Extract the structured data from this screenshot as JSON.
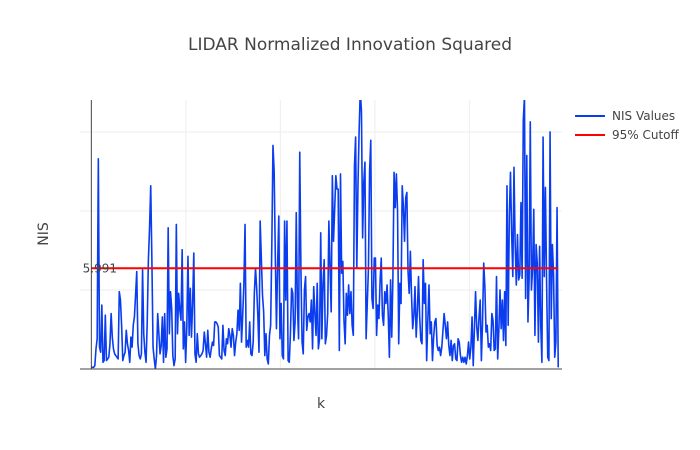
{
  "chart_data": {
    "type": "line",
    "title": "LIDAR Normalized Innovation Squared",
    "xlabel": "k",
    "ylabel": "NIS",
    "yticks": [
      {
        "value": 5.991,
        "label": "5.991"
      }
    ],
    "xlim": [
      -6,
      249
    ],
    "ylim": [
      0,
      16
    ],
    "grid": true,
    "legend_position": "top-right",
    "series": [
      {
        "name": "NIS Values",
        "color": "#0a3cf0",
        "values": [
          0.1,
          0.1,
          0.1,
          0.2,
          1.2,
          1.8,
          12.5,
          1.3,
          1.0,
          3.8,
          0.4,
          0.5,
          3.2,
          0.5,
          0.6,
          0.7,
          1.5,
          3.3,
          1.9,
          1.2,
          0.9,
          0.8,
          0.7,
          0.6,
          4.6,
          4.1,
          2.6,
          0.5,
          0.8,
          1.0,
          2.3,
          1.5,
          1.1,
          0.4,
          1.9,
          1.3,
          2.6,
          3.1,
          4.4,
          5.8,
          1.5,
          0.8,
          0.6,
          0.9,
          5.9,
          2.1,
          1.0,
          0.4,
          2.8,
          6.5,
          8.4,
          10.9,
          6.5,
          1.3,
          0.6,
          0.0,
          0.8,
          3.3,
          2.1,
          0.9,
          1.4,
          3.1,
          0.4,
          3.3,
          0.7,
          1.2,
          8.4,
          2.1,
          4.6,
          3.6,
          0.8,
          0.2,
          0.6,
          8.6,
          2.1,
          4.5,
          3.5,
          2.9,
          7.1,
          1.2,
          2.8,
          0.4,
          2.5,
          6.7,
          2.0,
          4.8,
          1.9,
          3.9,
          6.9,
          0.9,
          0.4,
          2.1,
          0.9,
          0.7,
          0.8,
          0.9,
          1.1,
          2.2,
          1.5,
          0.7,
          2.3,
          1.0,
          0.7,
          1.2,
          1.6,
          1.4,
          2.8,
          2.8,
          2.7,
          2.5,
          0.8,
          0.7,
          0.6,
          2.6,
          1.1,
          0.8,
          1.8,
          1.5,
          2.4,
          2.0,
          1.3,
          2.4,
          2.0,
          0.8,
          1.6,
          2.1,
          3.5,
          2.3,
          5.1,
          1.6,
          3.2,
          5.0,
          8.6,
          1.3,
          1.7,
          1.3,
          2.8,
          0.9,
          0.8,
          1.6,
          4.5,
          6.0,
          4.8,
          3.2,
          1.0,
          8.8,
          6.6,
          4.4,
          3.4,
          0.8,
          2.1,
          0.6,
          0.3,
          2.0,
          2.6,
          7.3,
          13.3,
          11.8,
          6.8,
          2.4,
          6.2,
          9.1,
          1.8,
          3.9,
          0.8,
          0.6,
          8.8,
          4.1,
          8.8,
          0.5,
          0.4,
          2.1,
          4.8,
          4.5,
          1.7,
          2.8,
          9.3,
          3.7,
          1.8,
          12.9,
          6.0,
          1.6,
          0.9,
          4.7,
          5.5,
          2.3,
          3.1,
          3.3,
          2.8,
          4.1,
          1.2,
          4.9,
          3.3,
          2.0,
          5.1,
          1.2,
          1.8,
          8.1,
          1.8,
          5.1,
          6.5,
          1.5,
          2.0,
          3.3,
          8.8,
          6.1,
          3.4,
          11.5,
          7.6,
          9.5,
          11.5,
          10.7,
          10.7,
          1.1,
          11.6,
          5.7,
          6.4,
          2.9,
          1.5,
          4.5,
          3.2,
          5.0,
          3.3,
          4.6,
          2.6,
          2.0,
          12.1,
          13.8,
          6.0,
          10.9,
          14.2,
          16.6,
          15.3,
          7.8,
          11.1,
          12.3,
          1.8,
          3.9,
          6.0,
          11.8,
          13.6,
          4.2,
          3.6,
          6.6,
          6.6,
          2.0,
          3.8,
          3.0,
          5.2,
          6.6,
          3.2,
          2.6,
          4.6,
          3.9,
          5.0,
          3.2,
          0.7,
          5.3,
          1.9,
          5.4,
          11.7,
          9.6,
          11.6,
          9.4,
          1.5,
          5.1,
          3.9,
          10.9,
          9.7,
          7.6,
          10.2,
          10.5,
          5.8,
          4.5,
          7.0,
          4.4,
          2.4,
          3.2,
          4.9,
          1.9,
          3.4,
          5.5,
          3.1,
          1.7,
          1.5,
          6.5,
          3.9,
          5.1,
          0.5,
          2.9,
          5.0,
          2.1,
          2.8,
          0.5,
          1.9,
          2.8,
          3.0,
          1.4,
          1.1,
          1.3,
          0.8,
          1.3,
          2.3,
          3.3,
          2.6,
          1.8,
          2.8,
          1.4,
          0.8,
          1.7,
          0.5,
          1.4,
          1.5,
          0.6,
          0.5,
          1.8,
          1.6,
          0.8,
          0.4,
          0.7,
          0.4,
          0.7,
          0.3,
          0.8,
          1.6,
          0.6,
          1.3,
          3.1,
          0.2,
          2.4,
          4.6,
          2.5,
          1.7,
          3.1,
          4.1,
          0.5,
          2.8,
          6.3,
          4.9,
          2.2,
          2.6,
          1.3,
          1.5,
          1.1,
          3.3,
          2.9,
          1.1,
          1.2,
          5.5,
          0.6,
          2.3,
          4.7,
          2.4,
          4.1,
          1.7,
          4.6,
          1.4,
          10.9,
          2.6,
          9.1,
          11.7,
          8.1,
          5.5,
          12.0,
          7.5,
          5.0,
          8.0,
          5.3,
          5.6,
          9.9,
          5.4,
          14.8,
          16.2,
          4.2,
          12.7,
          2.8,
          5.4,
          14.7,
          4.7,
          6.0,
          9.5,
          2.0,
          7.4,
          6.3,
          1.6,
          7.3,
          2.6,
          0.4,
          13.8,
          5.5,
          10.8,
          5.2,
          0.7,
          0.5,
          14.1,
          3.0,
          7.4,
          5.6,
          0.7,
          1.6,
          9.6,
          0.1
        ]
      },
      {
        "name": "95% Cutoff",
        "color": "#ff0000",
        "values": [
          5.991,
          5.991
        ]
      }
    ]
  }
}
